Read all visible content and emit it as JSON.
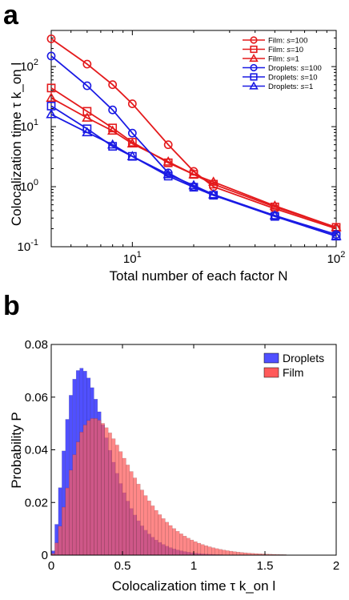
{
  "panels": {
    "a": {
      "label": "a"
    },
    "b": {
      "label": "b"
    }
  },
  "chart_data": [
    {
      "type": "line",
      "panel": "a",
      "xlabel": "Total number of each factor N",
      "ylabel": "Colocalization time τ k_on l",
      "xscale": "log",
      "yscale": "log",
      "xlim": [
        4,
        100
      ],
      "ylim": [
        0.1,
        400
      ],
      "xticks": [
        10,
        100
      ],
      "yticks": [
        0.1,
        1,
        10,
        100
      ],
      "xtick_labels": [
        {
          "base": "10",
          "exp": "1"
        },
        {
          "base": "10",
          "exp": "2"
        }
      ],
      "ytick_labels": [
        {
          "base": "10",
          "exp": "-1"
        },
        {
          "base": "10",
          "exp": "0"
        },
        {
          "base": "10",
          "exp": "1"
        },
        {
          "base": "10",
          "exp": "2"
        }
      ],
      "grid": false,
      "legend_position": "top-right",
      "x": [
        4,
        6,
        8,
        10,
        15,
        20,
        25,
        50,
        100
      ],
      "series": [
        {
          "name": "Film: s=100",
          "label_prefix": "Film: ",
          "label_s": "s",
          "label_value": "=100",
          "color": "#e41a1c",
          "marker": "circle",
          "values": [
            290,
            110,
            50,
            24,
            5,
            1.8,
            1.0,
            0.43,
            0.2
          ]
        },
        {
          "name": "Film: s=10",
          "label_prefix": "Film: ",
          "label_s": "s",
          "label_value": "=10",
          "color": "#e41a1c",
          "marker": "square",
          "values": [
            44,
            18,
            9.5,
            5.5,
            2.5,
            1.6,
            1.1,
            0.46,
            0.21
          ]
        },
        {
          "name": "Film: s=1",
          "label_prefix": "Film: ",
          "label_s": "s",
          "label_value": "=1",
          "color": "#e41a1c",
          "marker": "triangle",
          "values": [
            30,
            14,
            8.5,
            5.2,
            2.6,
            1.6,
            1.2,
            0.48,
            0.21
          ]
        },
        {
          "name": "Droplets: s=100",
          "label_prefix": "Droplets: ",
          "label_s": "s",
          "label_value": "=100",
          "color": "#1a1ae4",
          "marker": "circle",
          "values": [
            150,
            48,
            19,
            7.8,
            1.7,
            1.0,
            0.72,
            0.33,
            0.16
          ]
        },
        {
          "name": "Droplets: s=10",
          "label_prefix": "Droplets: ",
          "label_s": "s",
          "label_value": "=10",
          "color": "#1a1ae4",
          "marker": "square",
          "values": [
            22,
            9.2,
            4.7,
            3.2,
            1.5,
            0.98,
            0.72,
            0.32,
            0.15
          ]
        },
        {
          "name": "Droplets: s=1",
          "label_prefix": "Droplets: ",
          "label_s": "s",
          "label_value": "=1",
          "color": "#1a1ae4",
          "marker": "triangle",
          "values": [
            16,
            8,
            5,
            3.2,
            1.6,
            1.05,
            0.74,
            0.33,
            0.15
          ]
        }
      ]
    },
    {
      "type": "bar",
      "subtype": "histogram",
      "panel": "b",
      "xlabel": "Colocalization time τ k_on l",
      "ylabel": "Probability P",
      "xlim": [
        0,
        2
      ],
      "ylim": [
        0,
        0.08
      ],
      "xticks": [
        0,
        0.5,
        1,
        1.5,
        2
      ],
      "xtick_labels": [
        "0",
        "0.5",
        "1",
        "1.5",
        "2"
      ],
      "yticks": [
        0,
        0.02,
        0.04,
        0.06,
        0.08
      ],
      "ytick_labels": [
        "0",
        "0.02",
        "0.04",
        "0.06",
        "0.08"
      ],
      "bin_width": 0.025,
      "bin_start": 0,
      "grid": false,
      "legend_position": "top-right",
      "series": [
        {
          "name": "Droplets",
          "color": "#5050ff",
          "mode": "gamma",
          "k": 3.0,
          "peak_x": 0.21,
          "peak_value": 0.071
        },
        {
          "name": "Film",
          "color": "#ff5a5a",
          "mode": "gamma",
          "k": 3.0,
          "peak_x": 0.3,
          "peak_value": 0.052
        }
      ]
    }
  ]
}
